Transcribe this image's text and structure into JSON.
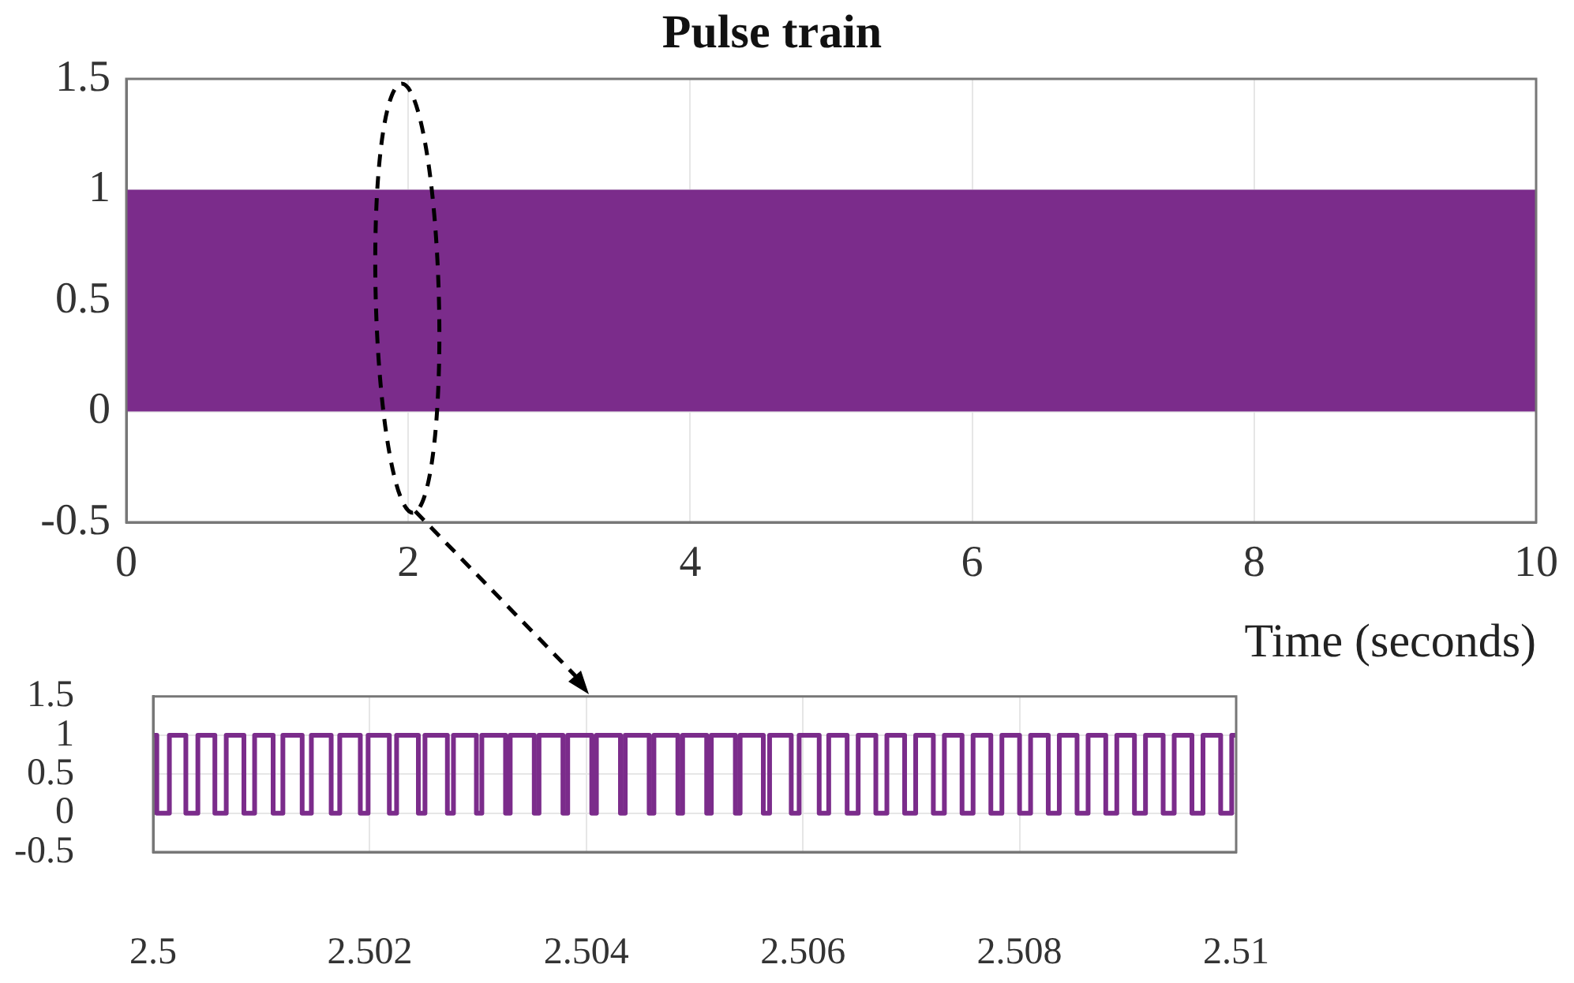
{
  "chart_data": [
    {
      "type": "step",
      "title": "Pulse train",
      "xlabel": "Time (seconds)",
      "xlim": [
        0,
        10
      ],
      "xticks": [
        0,
        2,
        4,
        6,
        8,
        10
      ],
      "ylim": [
        -0.5,
        1.5
      ],
      "yticks": [
        -0.5,
        0,
        0.5,
        1,
        1.5
      ],
      "grid": true,
      "bands": [
        {
          "axis": "y",
          "from": 0,
          "to": 1,
          "color": "#7b2c8b"
        }
      ]
    },
    {
      "type": "step",
      "xlim": [
        2.5,
        2.51
      ],
      "xticks": [
        2.5,
        2.502,
        2.504,
        2.506,
        2.508,
        2.51
      ],
      "ylim": [
        -0.5,
        1.5
      ],
      "yticks": [
        -0.5,
        0,
        0.5,
        1,
        1.5
      ],
      "grid": true,
      "series": [
        {
          "color": "#7b2c8b",
          "x": [
            2.5,
            2.500034,
            2.50015,
            2.500302,
            2.500413,
            2.50057,
            2.500675,
            2.500838,
            2.500937,
            2.501108,
            2.501198,
            2.501376,
            2.501461,
            2.501644,
            2.501723,
            2.501913,
            2.501985,
            2.502181,
            2.502248,
            2.502449,
            2.50251,
            2.502717,
            2.502773,
            2.502985,
            2.503035,
            2.503254,
            2.503297,
            2.503519,
            2.503563,
            2.503784,
            2.503828,
            2.50405,
            2.504093,
            2.504315,
            2.504359,
            2.50458,
            2.504624,
            2.504845,
            2.504889,
            2.505111,
            2.505154,
            2.505376,
            2.50542,
            2.505634,
            2.505692,
            2.505892,
            2.505965,
            2.50615,
            2.506238,
            2.506408,
            2.50651,
            2.506673,
            2.506775,
            2.506939,
            2.507041,
            2.507204,
            2.507306,
            2.507469,
            2.507571,
            2.507735,
            2.507837,
            2.508,
            2.508102,
            2.508265,
            2.508367,
            2.508531,
            2.508633,
            2.508796,
            2.508898,
            2.509061,
            2.509163,
            2.509326,
            2.509428,
            2.509592,
            2.509694,
            2.509857,
            2.509959,
            2.51
          ],
          "values": [
            1,
            0,
            1,
            0,
            1,
            0,
            1,
            0,
            1,
            0,
            1,
            0,
            1,
            0,
            1,
            0,
            1,
            0,
            1,
            0,
            1,
            0,
            1,
            0,
            1,
            0,
            1,
            0,
            1,
            0,
            1,
            0,
            1,
            0,
            1,
            0,
            1,
            0,
            1,
            0,
            1,
            0,
            1,
            0,
            1,
            0,
            1,
            0,
            1,
            0,
            1,
            0,
            1,
            0,
            1,
            0,
            1,
            0,
            1,
            0,
            1,
            0,
            1,
            0,
            1,
            0,
            1,
            0,
            1,
            0,
            1,
            0,
            1,
            0,
            1,
            0,
            1,
            1
          ]
        }
      ]
    }
  ]
}
